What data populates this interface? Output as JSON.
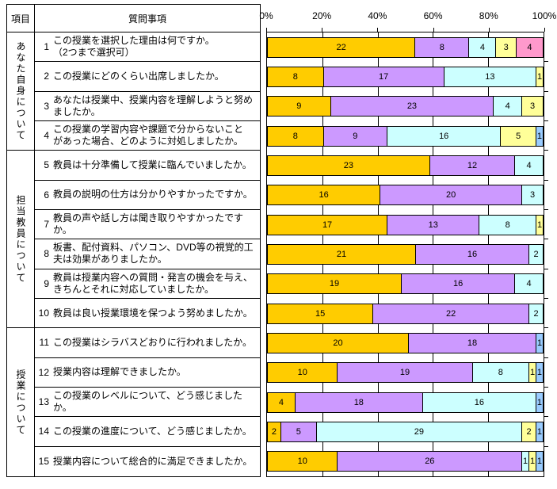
{
  "table": {
    "col1_header": "項目",
    "col2_header": "質問事項",
    "groups": [
      {
        "label": "あなた自身について",
        "rows": 4
      },
      {
        "label": "担当教員について",
        "rows": 6
      },
      {
        "label": "授業について",
        "rows": 5
      }
    ],
    "questions": [
      {
        "no": "1",
        "lines": [
          "この授業を選択した理由は何ですか。",
          "（2つまで選択可）"
        ]
      },
      {
        "no": "2",
        "lines": [
          "この授業にどのくらい出席しましたか。"
        ]
      },
      {
        "no": "3",
        "lines": [
          "あなたは授業中、授業内容を理解しようと努め",
          "ましたか。"
        ]
      },
      {
        "no": "4",
        "lines": [
          "この授業の学習内容や課題で分からないこと",
          "があった場合、どのように対処しましたか。"
        ]
      },
      {
        "no": "5",
        "lines": [
          "教員は十分準備して授業に臨んでいましたか。"
        ]
      },
      {
        "no": "6",
        "lines": [
          "教員の説明の仕方は分かりやすかったですか。"
        ]
      },
      {
        "no": "7",
        "lines": [
          "教員の声や話し方は聞き取りやすかったですか。"
        ]
      },
      {
        "no": "8",
        "lines": [
          "板書、配付資料、パソコン、DVD等の視覚的工",
          "夫は効果がありましたか。"
        ]
      },
      {
        "no": "9",
        "lines": [
          "教員は授業内容への質問・発言の機会を与え、",
          "きちんとそれに対応していましたか。"
        ]
      },
      {
        "no": "10",
        "lines": [
          "教員は良い授業環境を保つよう努めましたか。"
        ]
      },
      {
        "no": "11",
        "lines": [
          "この授業はシラバスどおりに行われましたか。"
        ]
      },
      {
        "no": "12",
        "lines": [
          "授業内容は理解できましたか。"
        ]
      },
      {
        "no": "13",
        "lines": [
          "この授業のレベルについて、どう感じましたか。"
        ]
      },
      {
        "no": "14",
        "lines": [
          "この授業の進度について、どう感じましたか。"
        ]
      },
      {
        "no": "15",
        "lines": [
          "授業内容について総合的に満足できましたか。"
        ]
      }
    ]
  },
  "chart_data": {
    "type": "bar",
    "stacked": true,
    "percent_stacked": true,
    "orientation": "horizontal",
    "grid": true,
    "legend": "none",
    "x_ticks": [
      "0%",
      "20%",
      "40%",
      "60%",
      "80%",
      "100%"
    ],
    "xlim": [
      0,
      100
    ],
    "categories": [
      "1",
      "2",
      "3",
      "4",
      "5",
      "6",
      "7",
      "8",
      "9",
      "10",
      "11",
      "12",
      "13",
      "14",
      "15"
    ],
    "palette": {
      "gold": "#FFCC00",
      "lavender": "#CC99FF",
      "light_turquoise": "#CCFFFF",
      "light_yellow": "#FFFF99",
      "rose": "#FF99CC",
      "pale_blue": "#99CCFF"
    },
    "rows": [
      {
        "segments": [
          {
            "value": 22,
            "color": "#FFCC00"
          },
          {
            "value": 8,
            "color": "#CC99FF"
          },
          {
            "value": 4,
            "color": "#CCFFFF"
          },
          {
            "value": 3,
            "color": "#FFFF99"
          },
          {
            "value": 4,
            "color": "#FF99CC"
          }
        ]
      },
      {
        "segments": [
          {
            "value": 8,
            "color": "#FFCC00"
          },
          {
            "value": 17,
            "color": "#CC99FF"
          },
          {
            "value": 13,
            "color": "#CCFFFF"
          },
          {
            "value": 1,
            "color": "#FFFF99"
          }
        ]
      },
      {
        "segments": [
          {
            "value": 9,
            "color": "#FFCC00"
          },
          {
            "value": 23,
            "color": "#CC99FF"
          },
          {
            "value": 4,
            "color": "#CCFFFF"
          },
          {
            "value": 3,
            "color": "#FFFF99"
          }
        ]
      },
      {
        "segments": [
          {
            "value": 8,
            "color": "#FFCC00"
          },
          {
            "value": 9,
            "color": "#CC99FF"
          },
          {
            "value": 16,
            "color": "#CCFFFF"
          },
          {
            "value": 5,
            "color": "#FFFF99"
          },
          {
            "value": 1,
            "color": "#99CCFF"
          }
        ]
      },
      {
        "segments": [
          {
            "value": 23,
            "color": "#FFCC00"
          },
          {
            "value": 12,
            "color": "#CC99FF"
          },
          {
            "value": 4,
            "color": "#CCFFFF"
          }
        ]
      },
      {
        "segments": [
          {
            "value": 16,
            "color": "#FFCC00"
          },
          {
            "value": 20,
            "color": "#CC99FF"
          },
          {
            "value": 3,
            "color": "#CCFFFF"
          }
        ]
      },
      {
        "segments": [
          {
            "value": 17,
            "color": "#FFCC00"
          },
          {
            "value": 13,
            "color": "#CC99FF"
          },
          {
            "value": 8,
            "color": "#CCFFFF"
          },
          {
            "value": 1,
            "color": "#FFFF99"
          }
        ]
      },
      {
        "segments": [
          {
            "value": 21,
            "color": "#FFCC00"
          },
          {
            "value": 16,
            "color": "#CC99FF"
          },
          {
            "value": 2,
            "color": "#CCFFFF"
          }
        ]
      },
      {
        "segments": [
          {
            "value": 19,
            "color": "#FFCC00"
          },
          {
            "value": 16,
            "color": "#CC99FF"
          },
          {
            "value": 4,
            "color": "#CCFFFF"
          }
        ]
      },
      {
        "segments": [
          {
            "value": 15,
            "color": "#FFCC00"
          },
          {
            "value": 22,
            "color": "#CC99FF"
          },
          {
            "value": 2,
            "color": "#CCFFFF"
          }
        ]
      },
      {
        "segments": [
          {
            "value": 20,
            "color": "#FFCC00"
          },
          {
            "value": 18,
            "color": "#CC99FF"
          },
          {
            "value": 1,
            "color": "#99CCFF"
          }
        ]
      },
      {
        "segments": [
          {
            "value": 10,
            "color": "#FFCC00"
          },
          {
            "value": 19,
            "color": "#CC99FF"
          },
          {
            "value": 8,
            "color": "#CCFFFF"
          },
          {
            "value": 1,
            "color": "#FFFF99"
          },
          {
            "value": 1,
            "color": "#99CCFF"
          }
        ]
      },
      {
        "segments": [
          {
            "value": 4,
            "color": "#FFCC00"
          },
          {
            "value": 18,
            "color": "#CC99FF"
          },
          {
            "value": 16,
            "color": "#CCFFFF"
          },
          {
            "value": 1,
            "color": "#99CCFF"
          }
        ]
      },
      {
        "segments": [
          {
            "value": 2,
            "color": "#FFCC00"
          },
          {
            "value": 5,
            "color": "#CC99FF"
          },
          {
            "value": 29,
            "color": "#CCFFFF"
          },
          {
            "value": 2,
            "color": "#FFFF99"
          },
          {
            "value": 1,
            "color": "#99CCFF"
          }
        ]
      },
      {
        "segments": [
          {
            "value": 10,
            "color": "#FFCC00"
          },
          {
            "value": 26,
            "color": "#CC99FF"
          },
          {
            "value": 1,
            "color": "#CCFFFF"
          },
          {
            "value": 1,
            "color": "#FFFF99"
          },
          {
            "value": 1,
            "color": "#99CCFF"
          }
        ]
      }
    ]
  }
}
